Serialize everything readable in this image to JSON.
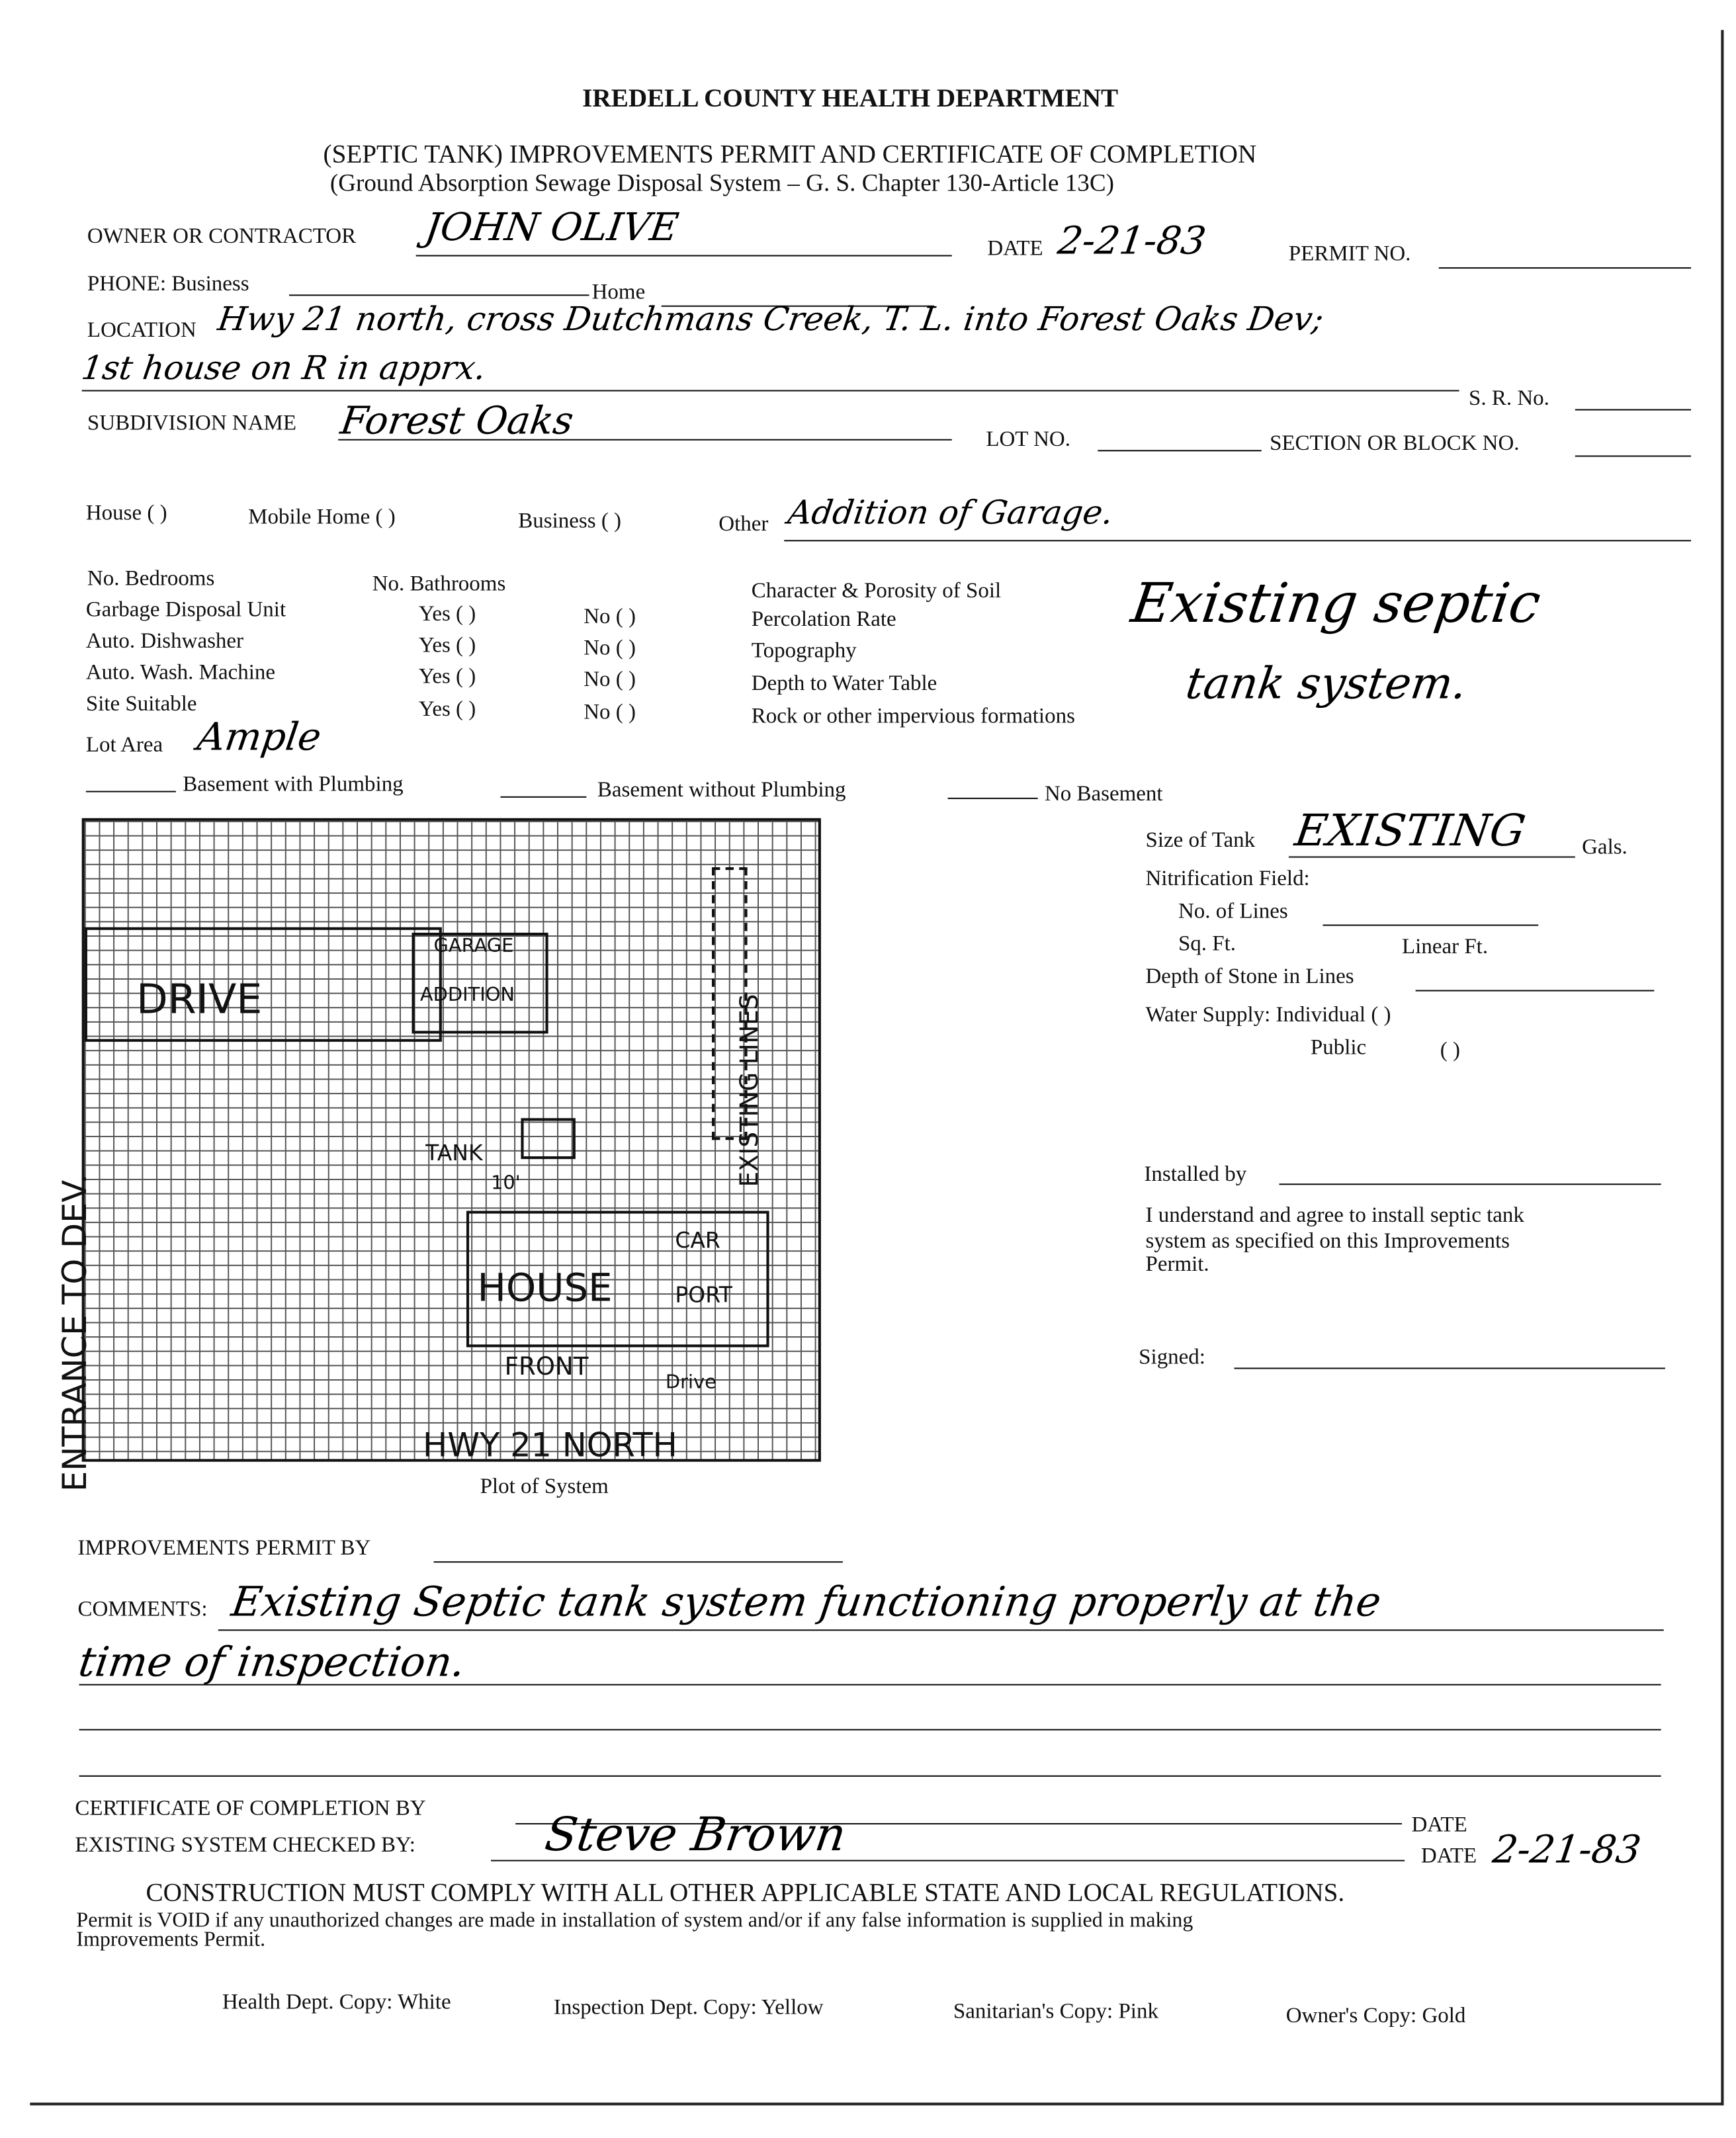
{
  "header": {
    "agency": "IREDELL COUNTY HEALTH DEPARTMENT",
    "title": "(SEPTIC TANK) IMPROVEMENTS PERMIT AND CERTIFICATE OF COMPLETION",
    "subtitle": "(Ground Absorption Sewage Disposal System – G. S. Chapter 130-Article 13C)"
  },
  "owner": {
    "label": "OWNER OR CONTRACTOR",
    "value": "JOHN OLIVE",
    "date_label": "DATE",
    "date": "2-21-83",
    "permit_label": "PERMIT NO."
  },
  "phone": {
    "label": "PHONE:  Business",
    "home_label": "Home"
  },
  "location": {
    "label": "LOCATION",
    "line1": "Hwy 21 north, cross Dutchmans Creek, T. L. into Forest Oaks Dev;",
    "line2": "1st house on R in apprx.",
    "sr_label": "S. R. No."
  },
  "subdivision": {
    "label": "SUBDIVISION NAME",
    "value": "Forest Oaks",
    "lot_label": "LOT NO.",
    "section_label": "SECTION OR BLOCK NO."
  },
  "type": {
    "house": "House (  )",
    "mobile": "Mobile Home (  )",
    "business": "Business (  )",
    "other_label": "Other",
    "other_value": "Addition of Garage."
  },
  "left_fields": {
    "bedrooms": "No. Bedrooms",
    "bathrooms": "No. Bathrooms",
    "rows": [
      "Garbage Disposal Unit",
      "Auto. Dishwasher",
      "Auto. Wash. Machine",
      "Site Suitable"
    ],
    "yes": "Yes  (   )",
    "no": "No   (   )",
    "lot_area_label": "Lot Area",
    "lot_area_value": "Ample"
  },
  "soil": {
    "rows": [
      "Character & Porosity of Soil",
      "Percolation Rate",
      "Topography",
      "Depth to Water Table",
      "Rock or other impervious formations"
    ],
    "value1": "Existing septic",
    "value2": "tank system."
  },
  "basement": {
    "with": "Basement with Plumbing",
    "without": "Basement without Plumbing",
    "none": "No Basement"
  },
  "tank": {
    "size_label": "Size of Tank",
    "size_value": "EXISTING",
    "gals": "Gals.",
    "nitrification": "Nitrification Field:",
    "lines": "No. of Lines",
    "sqft": "Sq. Ft.",
    "linear": "Linear Ft.",
    "depth": "Depth of Stone in Lines",
    "water": "Water Supply:  Individual   (   )",
    "public": "Public",
    "public_mark": "(   )"
  },
  "installer": {
    "label": "Installed by",
    "agreement": [
      "I understand and agree to install septic tank",
      "system as specified on this Improvements",
      "Permit."
    ],
    "signed": "Signed:"
  },
  "plot": {
    "caption": "Plot of System",
    "drive": "DRIVE",
    "garage": "GARAGE",
    "addition": "ADDITION",
    "existing_lines": "EXISTING LINES",
    "tank": "TANK",
    "distance": "10'",
    "house": "HOUSE",
    "car": "CAR",
    "port": "PORT",
    "front": "FRONT",
    "drive2": "Drive",
    "road": "HWY 21 NORTH",
    "entrance": "ENTRANCE TO DEV."
  },
  "permit": {
    "by_label": "IMPROVEMENTS PERMIT BY",
    "comments_label": "COMMENTS:",
    "comments1": "Existing Septic tank system functioning properly at the",
    "comments2": "time of inspection."
  },
  "certificate": {
    "by_label": "CERTIFICATE OF COMPLETION BY",
    "date_label": "DATE",
    "checked_label": "EXISTING SYSTEM CHECKED BY:",
    "signature": "Steve Brown",
    "date2_label": "DATE",
    "date2": "2-21-83"
  },
  "notice": {
    "headline": "CONSTRUCTION MUST COMPLY WITH ALL OTHER APPLICABLE STATE AND LOCAL REGULATIONS.",
    "line1": "Permit is VOID if any unauthorized changes are made in installation of system and/or if any false information is supplied in making",
    "line2": "Improvements Permit."
  },
  "copies": [
    "Health Dept. Copy: White",
    "Inspection Dept. Copy: Yellow",
    "Sanitarian's Copy: Pink",
    "Owner's Copy: Gold"
  ]
}
